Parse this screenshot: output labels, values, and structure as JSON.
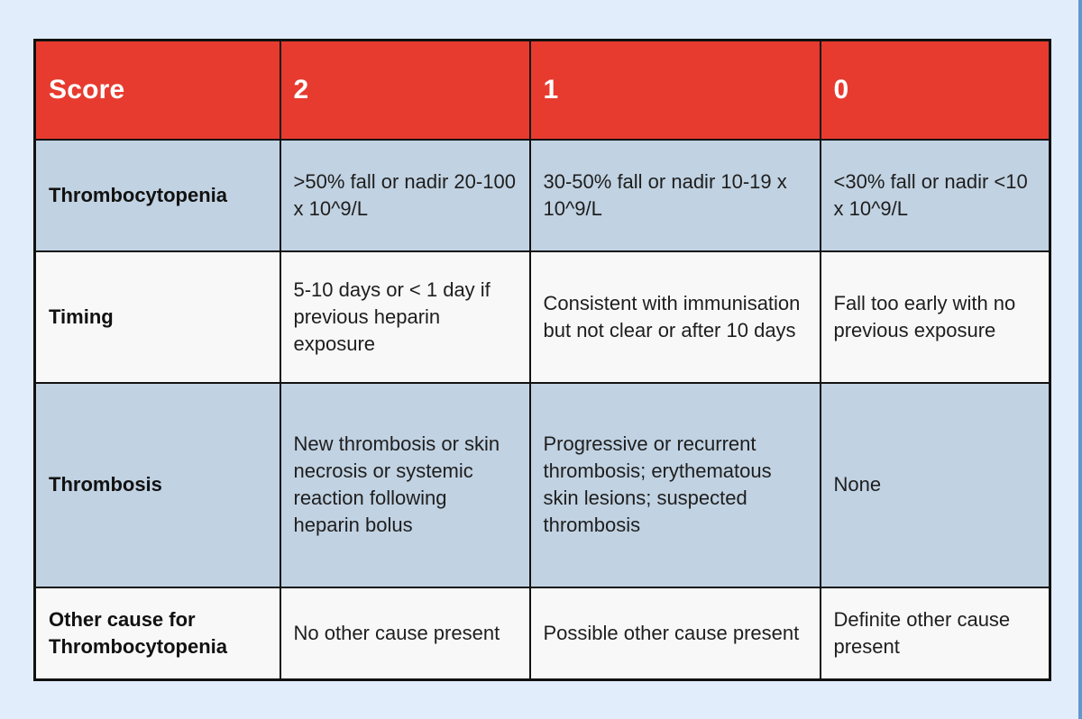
{
  "page": {
    "background_color": "#e1edfb",
    "right_edge_accent_color": "#6197cf"
  },
  "table": {
    "name": "4Ts heparin-induced thrombocytopenia score table",
    "colors": {
      "header_bg": "#e73b2f",
      "header_text": "#ffffff",
      "row_blue_bg": "#c1d2e2",
      "row_white_bg": "#f8f8f8",
      "border": "#111111"
    },
    "header": {
      "cells": [
        "Score",
        "2",
        "1",
        "0"
      ]
    },
    "rows": [
      {
        "label": "Thrombocytopenia",
        "cells": [
          ">50% fall or nadir 20-100 x 10^9/L",
          "30-50% fall or nadir 10-19 x 10^9/L",
          "<30% fall or nadir <10 x 10^9/L"
        ]
      },
      {
        "label": "Timing",
        "cells": [
          "5-10 days or < 1 day if previous heparin exposure",
          "Consistent with immunisation but not clear or after 10 days",
          "Fall too early with no previous exposure"
        ]
      },
      {
        "label": "Thrombosis",
        "cells": [
          "New thrombosis or skin necrosis or systemic reaction following heparin bolus",
          "Progressive or recurrent thrombosis; erythematous skin lesions; suspected thrombosis",
          "None"
        ]
      },
      {
        "label": "Other cause for Thrombocytopenia",
        "cells": [
          "No other cause present",
          "Possible other cause present",
          "Definite other cause present"
        ]
      }
    ]
  }
}
